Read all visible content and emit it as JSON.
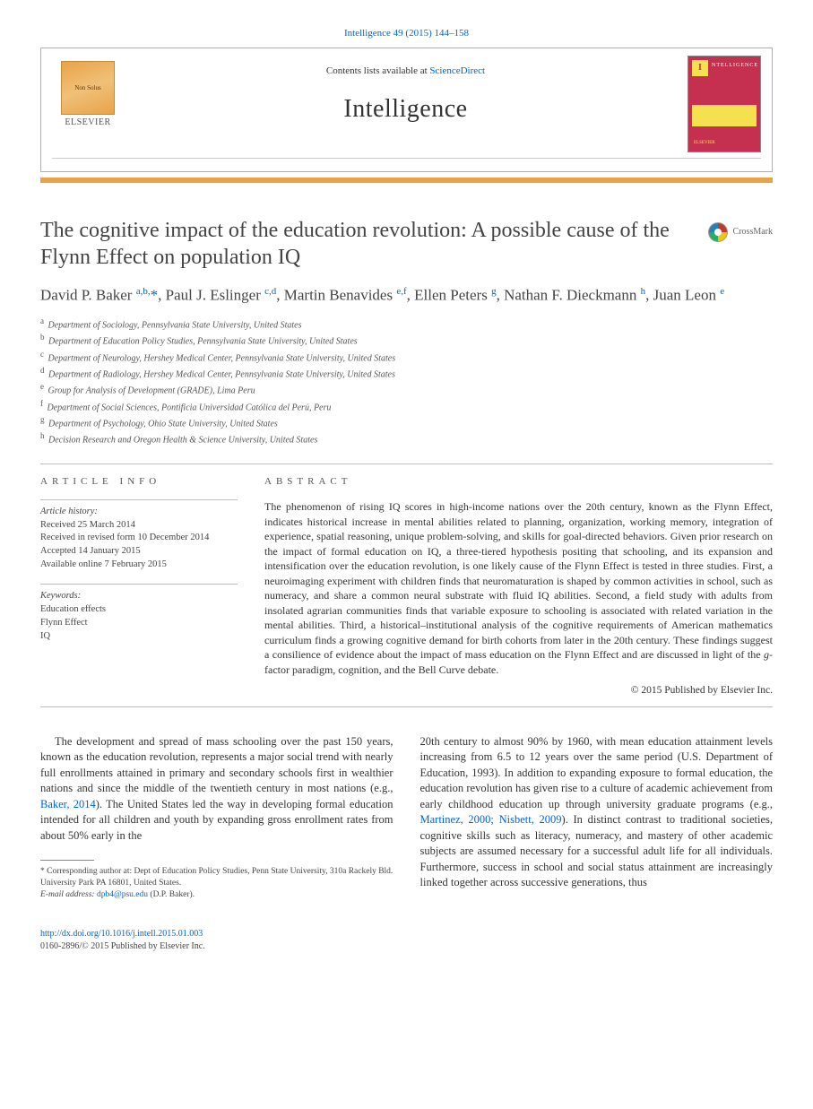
{
  "journal_ref": "Intelligence 49 (2015) 144–158",
  "header": {
    "contents_prefix": "Contents lists available at ",
    "contents_link": "ScienceDirect",
    "journal_name": "Intelligence",
    "publisher": "ELSEVIER",
    "cover_letter": "I",
    "cover_word": "NTELLIGENCE"
  },
  "crossmark_label": "CrossMark",
  "article_title": "The cognitive impact of the education revolution: A possible cause of the Flynn Effect on population IQ",
  "authors_html": "David P. Baker <sup>a,b,</sup><span class='star'>*</span>, Paul J. Eslinger <sup>c,d</sup>, Martin Benavides <sup>e,f</sup>, Ellen Peters <sup>g</sup>, Nathan F. Dieckmann <sup>h</sup>, Juan Leon <sup>e</sup>",
  "affiliations": [
    {
      "key": "a",
      "text": "Department of Sociology, Pennsylvania State University, United States"
    },
    {
      "key": "b",
      "text": "Department of Education Policy Studies, Pennsylvania State University, United States"
    },
    {
      "key": "c",
      "text": "Department of Neurology, Hershey Medical Center, Pennsylvania State University, United States"
    },
    {
      "key": "d",
      "text": "Department of Radiology, Hershey Medical Center, Pennsylvania State University, United States"
    },
    {
      "key": "e",
      "text": "Group for Analysis of Development (GRADE), Lima Peru"
    },
    {
      "key": "f",
      "text": "Department of Social Sciences, Pontificia Universidad Católica del Perú, Peru"
    },
    {
      "key": "g",
      "text": "Department of Psychology, Ohio State University, United States"
    },
    {
      "key": "h",
      "text": "Decision Research and Oregon Health & Science University, United States"
    }
  ],
  "info": {
    "head": "ARTICLE INFO",
    "history_label": "Article history:",
    "history": [
      "Received 25 March 2014",
      "Received in revised form 10 December 2014",
      "Accepted 14 January 2015",
      "Available online 7 February 2015"
    ],
    "keywords_label": "Keywords:",
    "keywords": [
      "Education effects",
      "Flynn Effect",
      "IQ"
    ]
  },
  "abstract": {
    "head": "ABSTRACT",
    "text": "The phenomenon of rising IQ scores in high-income nations over the 20th century, known as the Flynn Effect, indicates historical increase in mental abilities related to planning, organization, working memory, integration of experience, spatial reasoning, unique problem-solving, and skills for goal-directed behaviors. Given prior research on the impact of formal education on IQ, a three-tiered hypothesis positing that schooling, and its expansion and intensification over the education revolution, is one likely cause of the Flynn Effect is tested in three studies. First, a neuroimaging experiment with children finds that neuromaturation is shaped by common activities in school, such as numeracy, and share a common neural substrate with fluid IQ abilities. Second, a field study with adults from insolated agrarian communities finds that variable exposure to schooling is associated with related variation in the mental abilities. Third, a historical–institutional analysis of the cognitive requirements of American mathematics curriculum finds a growing cognitive demand for birth cohorts from later in the 20th century. These findings suggest a consilience of evidence about the impact of mass education on the Flynn Effect and are discussed in light of the ",
    "text_tail": "-factor paradigm, cognition, and the Bell Curve debate.",
    "g_letter": "g",
    "copyright": "© 2015 Published by Elsevier Inc."
  },
  "body": {
    "col1_p1": "The development and spread of mass schooling over the past 150 years, known as the education revolution, represents a major social trend with nearly full enrollments attained in primary and secondary schools first in wealthier nations and since the middle of the twentieth century in most nations (e.g., ",
    "col1_link1": "Baker, 2014",
    "col1_p1b": "). The United States led the way in developing formal education intended for all children and youth by expanding gross enrollment rates from about 50% early in the",
    "col2_p1": "20th century to almost 90% by 1960, with mean education attainment levels increasing from 6.5 to 12 years over the same period (U.S. Department of Education, 1993). In addition to expanding exposure to formal education, the education revolution has given rise to a culture of academic achievement from early childhood education up through university graduate programs (e.g., ",
    "col2_link1": "Martinez, 2000; Nisbett, 2009",
    "col2_p1b": "). In distinct contrast to traditional societies, cognitive skills such as literacy, numeracy, and mastery of other academic subjects are assumed necessary for a successful adult life for all individuals. Furthermore, success in school and social status attainment are increasingly linked together across successive generations, thus"
  },
  "corr": {
    "star": "*",
    "text": " Corresponding author at: Dept of Education Policy Studies, Penn State University, 310a Rackely Bld. University Park PA 16801, United States.",
    "email_label": "E-mail address: ",
    "email": "dpb4@psu.edu",
    "email_tail": " (D.P. Baker)."
  },
  "footer": {
    "doi": "http://dx.doi.org/10.1016/j.intell.2015.01.003",
    "issn_line": "0160-2896/© 2015 Published by Elsevier Inc."
  },
  "colors": {
    "link": "#0066cc",
    "rule": "#e8a34a",
    "cover_bg": "#c53050",
    "cover_accent": "#f5e050"
  }
}
